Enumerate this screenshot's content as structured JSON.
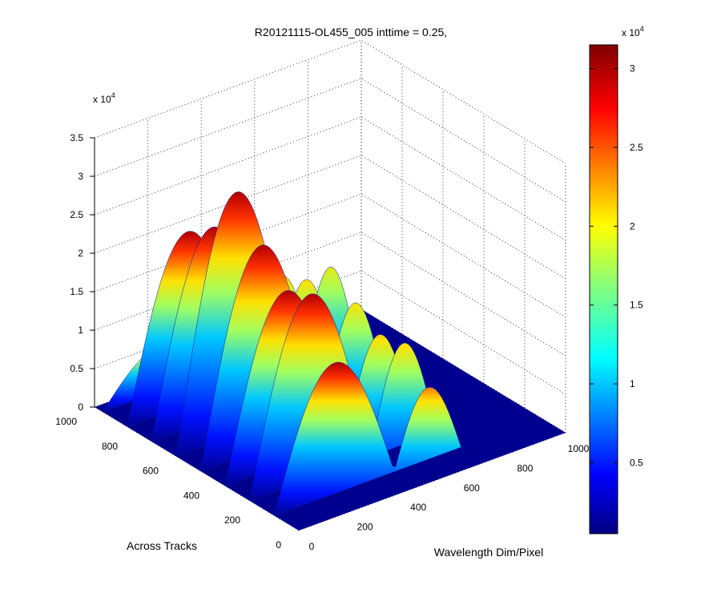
{
  "chart_data": {
    "type": "surface",
    "title": "R20121115-OL455_005 inttime = 0.25,",
    "xlabel": "Wavelength Dim/Pixel",
    "ylabel": "Across Tracks",
    "zlabel": "",
    "x_ticks": [
      "0",
      "200",
      "400",
      "600",
      "800",
      "1000"
    ],
    "y_ticks": [
      "0",
      "200",
      "400",
      "600",
      "800",
      "1000"
    ],
    "z_ticks": [
      "0",
      "0.5",
      "1",
      "1.5",
      "2",
      "2.5",
      "3",
      "3.5"
    ],
    "z_exponent": "x 10",
    "z_exponent_power": "4",
    "xlim": [
      0,
      1000
    ],
    "ylim": [
      0,
      1000
    ],
    "zlim": [
      0,
      35000
    ],
    "grid": true,
    "colormap": "jet",
    "colorbar": {
      "ticks": [
        "0.5",
        "1",
        "1.5",
        "2",
        "2.5",
        "3"
      ],
      "range": [
        500,
        31500
      ],
      "exponent": "x 10",
      "exponent_power": "4"
    },
    "peaks": [
      {
        "across_track": 120,
        "wavelength_start": 0,
        "max": 17000
      },
      {
        "across_track": 240,
        "wavelength_start": 0,
        "max": 24000
      },
      {
        "across_track": 360,
        "wavelength_start": 0,
        "max": 22500
      },
      {
        "across_track": 480,
        "wavelength_start": 0,
        "max": 26500
      },
      {
        "across_track": 600,
        "wavelength_start": 0,
        "max": 31500
      },
      {
        "across_track": 720,
        "wavelength_start": 0,
        "max": 25000
      },
      {
        "across_track": 840,
        "wavelength_start": 0,
        "max": 22500
      },
      {
        "across_track": 960,
        "wavelength_start": 0,
        "max": 6000
      }
    ]
  }
}
